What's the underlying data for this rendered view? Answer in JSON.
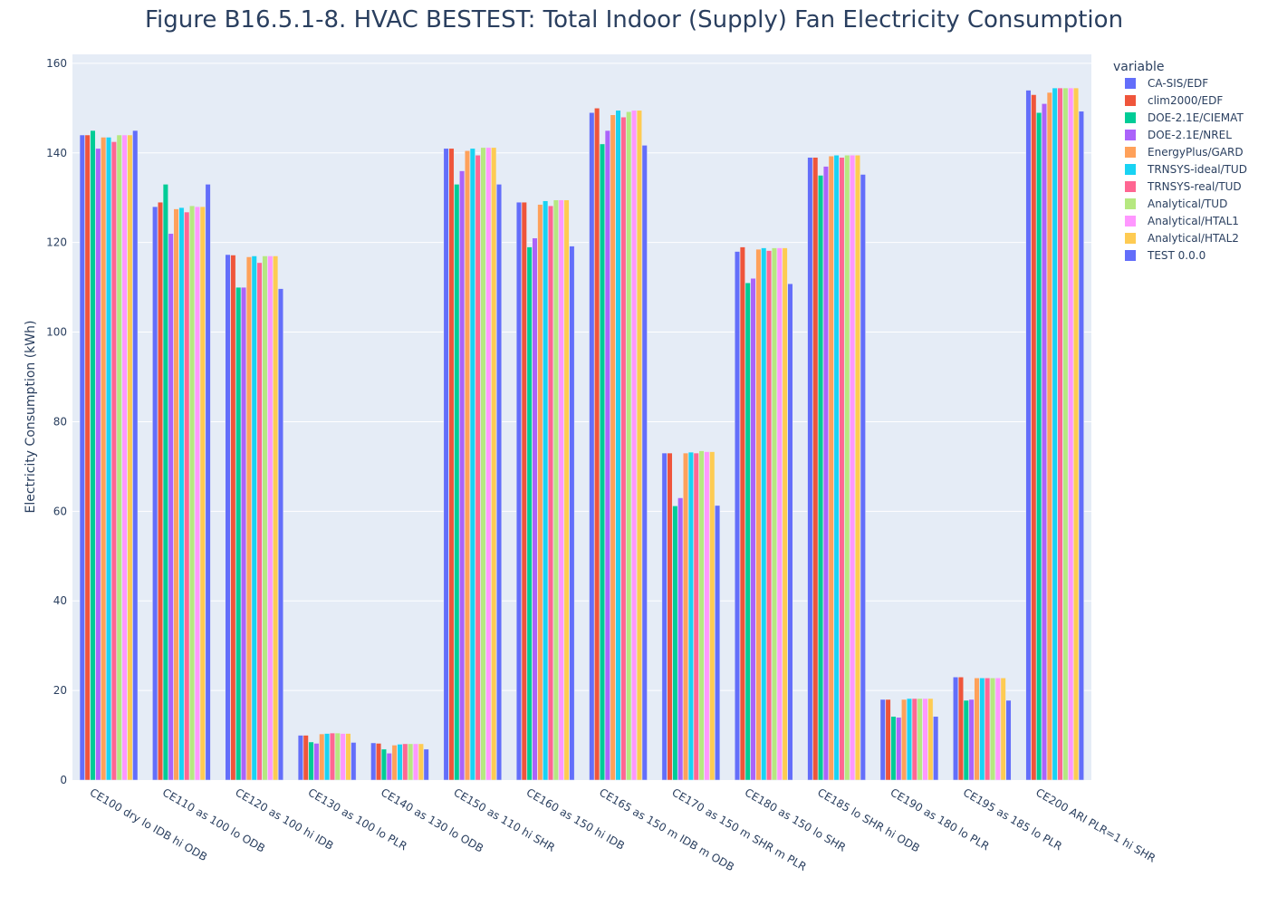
{
  "chart_data": {
    "type": "bar",
    "title": "Figure B16.5.1-8. HVAC BESTEST: Total Indoor (Supply) Fan Electricity Consumption",
    "ylabel": "Electricity Consumption  (kWh)",
    "xlabel": "",
    "ylim": [
      0,
      162
    ],
    "yticks": [
      0,
      20,
      40,
      60,
      80,
      100,
      120,
      140,
      160
    ],
    "grid": true,
    "legend_title": "variable",
    "legend_position": "top-right",
    "categories": [
      "CE100 dry lo IDB hi ODB",
      "CE110 as 100 lo ODB",
      "CE120 as 100 hi IDB",
      "CE130 as 100 lo PLR",
      "CE140 as 130 lo ODB",
      "CE150 as 110 hi SHR",
      "CE160 as 150 hi IDB",
      "CE165 as 150 m IDB m ODB",
      "CE170 as 150 m SHR m PLR",
      "CE180 as 150 lo SHR",
      "CE185 lo SHR hi ODB",
      "CE190 as 180 lo PLR",
      "CE195 as 185 lo PLR",
      "CE200 ARI  PLR=1 hi SHR"
    ],
    "series": [
      {
        "name": "CA-SIS/EDF",
        "color": "#636efa",
        "values": [
          144.0,
          128.0,
          117.3,
          10.0,
          8.3,
          141.0,
          129.0,
          149.0,
          73.0,
          118.0,
          139.0,
          18.0,
          23.0,
          154.0
        ]
      },
      {
        "name": "clim2000/EDF",
        "color": "#ef553b",
        "values": [
          144.0,
          129.0,
          117.2,
          10.0,
          8.2,
          141.0,
          129.0,
          150.0,
          73.0,
          119.0,
          139.0,
          18.0,
          23.0,
          153.0
        ]
      },
      {
        "name": "DOE-2.1E/CIEMAT",
        "color": "#00cc96",
        "values": [
          145.0,
          133.0,
          110.0,
          8.5,
          6.9,
          133.0,
          119.0,
          142.0,
          61.2,
          111.0,
          135.0,
          14.2,
          17.8,
          149.0
        ]
      },
      {
        "name": "DOE-2.1E/NREL",
        "color": "#ab63fa",
        "values": [
          141.0,
          122.0,
          110.0,
          8.2,
          6.0,
          136.0,
          121.0,
          145.0,
          63.0,
          112.0,
          137.0,
          14.0,
          18.0,
          151.0
        ]
      },
      {
        "name": "EnergyPlus/GARD",
        "color": "#ffa15a",
        "values": [
          143.5,
          127.5,
          116.8,
          10.3,
          7.8,
          140.5,
          128.5,
          148.5,
          73.0,
          118.5,
          139.3,
          18.0,
          22.8,
          153.5
        ]
      },
      {
        "name": "TRNSYS-ideal/TUD",
        "color": "#19d3f3",
        "values": [
          143.5,
          127.8,
          117.0,
          10.4,
          8.0,
          141.0,
          129.3,
          149.5,
          73.2,
          118.8,
          139.5,
          18.2,
          22.8,
          154.5
        ]
      },
      {
        "name": "TRNSYS-real/TUD",
        "color": "#ff6692",
        "values": [
          142.5,
          126.8,
          115.5,
          10.5,
          8.1,
          139.5,
          128.2,
          148.0,
          73.0,
          118.2,
          139.0,
          18.2,
          22.8,
          154.5
        ]
      },
      {
        "name": "Analytical/TUD",
        "color": "#b6e880",
        "values": [
          144.0,
          128.2,
          117.0,
          10.5,
          8.1,
          141.2,
          129.5,
          149.2,
          73.5,
          118.8,
          139.5,
          18.2,
          22.8,
          154.5
        ]
      },
      {
        "name": "Analytical/HTAL1",
        "color": "#ff97ff",
        "values": [
          144.0,
          128.0,
          117.0,
          10.4,
          8.1,
          141.2,
          129.5,
          149.5,
          73.3,
          118.8,
          139.5,
          18.2,
          22.8,
          154.5
        ]
      },
      {
        "name": "Analytical/HTAL2",
        "color": "#fecb52",
        "values": [
          144.0,
          128.0,
          117.0,
          10.4,
          8.1,
          141.2,
          129.5,
          149.5,
          73.3,
          118.8,
          139.5,
          18.2,
          22.8,
          154.5
        ]
      },
      {
        "name": "TEST 0.0.0",
        "color": "#636efa",
        "values": [
          145.0,
          133.0,
          109.7,
          8.4,
          6.9,
          133.0,
          119.2,
          141.7,
          61.3,
          110.8,
          135.2,
          14.2,
          17.8,
          149.3
        ]
      }
    ]
  }
}
